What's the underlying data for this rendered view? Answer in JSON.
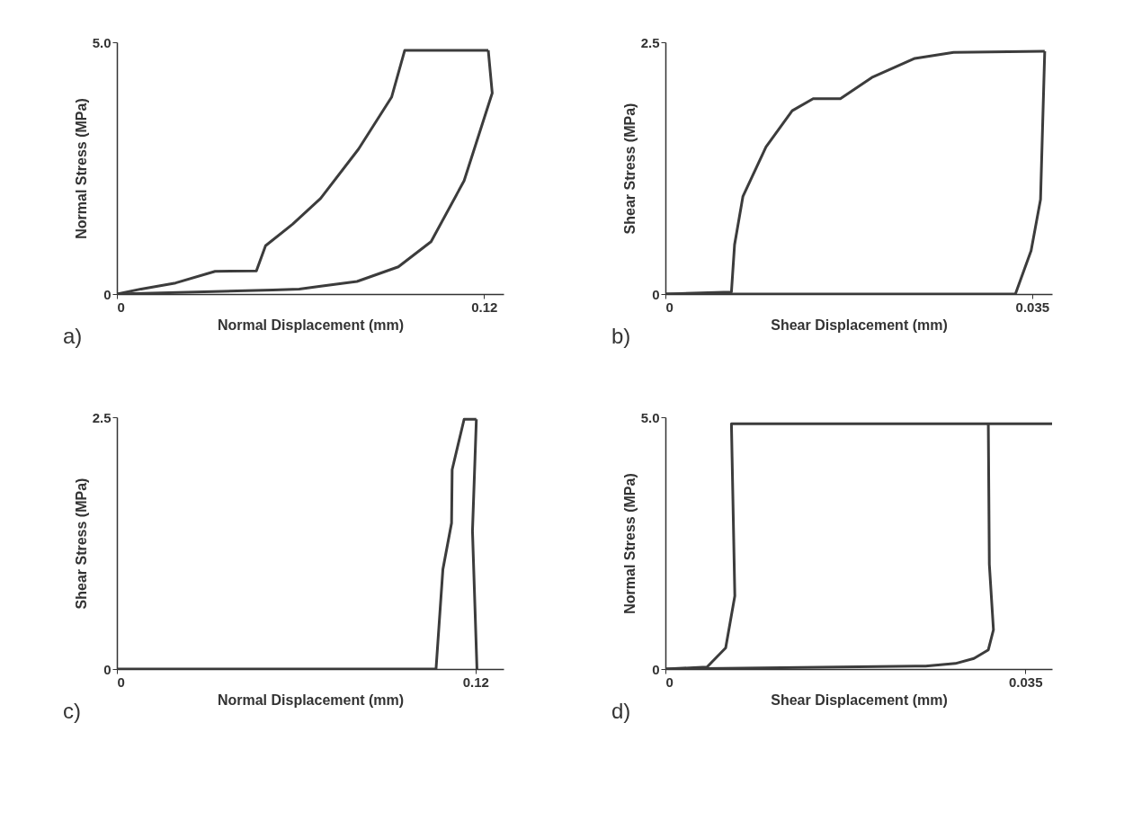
{
  "chart_data": [
    {
      "type": "line",
      "xlabel": "Normal Displacement (mm)",
      "ylabel": "Normal Stress (MPa)",
      "annotations": [
        "a)"
      ],
      "grid": false,
      "xlim": [
        0,
        0.1264
      ],
      "ylim": [
        0,
        5.0
      ],
      "xticks": [
        0,
        0.12
      ],
      "yticks": [
        0,
        {
          "value": 5,
          "label": "5.0"
        }
      ],
      "series": [
        {
          "color": "#3c3c3c",
          "x": [
            0,
            0.0079,
            0.0192,
            0.0321,
            0.0456,
            0.0486,
            0.0575,
            0.0666,
            0.079,
            0.0898,
            0.0941,
            0.1214
          ],
          "values": [
            0,
            0.1,
            0.22,
            0.45,
            0.46,
            0.96,
            1.39,
            1.9,
            2.88,
            3.91,
            4.84,
            4.84
          ]
        },
        {
          "color": "#3c3c3c",
          "x": [
            0.1214,
            0.1227,
            0.1135,
            0.1027,
            0.092,
            0.0785,
            0.0661,
            0.0596,
            0.051,
            0
          ],
          "values": [
            4.84,
            3.99,
            2.25,
            1.04,
            0.54,
            0.25,
            0.15,
            0.1,
            0.08,
            0
          ]
        }
      ]
    },
    {
      "type": "line",
      "xlabel": "Shear Displacement (mm)",
      "ylabel": "Shear Stress (MPa)",
      "annotations": [
        "b)"
      ],
      "grid": false,
      "xlim": [
        0,
        0.0369
      ],
      "ylim": [
        0,
        2.5
      ],
      "xticks": [
        0,
        0.035
      ],
      "yticks": [
        0,
        2.5
      ],
      "series": [
        {
          "color": "#3c3c3c",
          "x": [
            0,
            0.0063,
            0.0066,
            0.0074,
            0.0096,
            0.0121,
            0.0141,
            0.0167,
            0.0197,
            0.0238,
            0.0275,
            0.0362
          ],
          "values": [
            0,
            0.02,
            0.49,
            0.97,
            1.46,
            1.82,
            1.94,
            1.94,
            2.15,
            2.34,
            2.4,
            2.41
          ]
        },
        {
          "color": "#3c3c3c",
          "x": [
            0.0362,
            0.0358,
            0.0349,
            0.0334,
            0
          ],
          "values": [
            2.41,
            0.94,
            0.43,
            0,
            0
          ]
        }
      ]
    },
    {
      "type": "line",
      "xlabel": "Normal Displacement (mm)",
      "ylabel": "Shear Stress (MPa)",
      "annotations": [
        "c)"
      ],
      "grid": false,
      "xlim": [
        0,
        0.1294
      ],
      "ylim": [
        0,
        2.5
      ],
      "xticks": [
        0,
        0.12
      ],
      "yticks": [
        0,
        2.5
      ],
      "series": [
        {
          "color": "#3c3c3c",
          "x": [
            0,
            0.1068,
            0.1091,
            0.112,
            0.1122,
            0.1162,
            0.1203
          ],
          "values": [
            0,
            0,
            0.99,
            1.45,
            1.98,
            2.48,
            2.48
          ]
        },
        {
          "color": "#3c3c3c",
          "x": [
            0.1203,
            0.119,
            0.1205
          ],
          "values": [
            2.48,
            1.37,
            0
          ]
        }
      ]
    },
    {
      "type": "line",
      "xlabel": "Shear Displacement (mm)",
      "ylabel": "Normal Stress (MPa)",
      "annotations": [
        "d)"
      ],
      "grid": false,
      "xlim": [
        0,
        0.0376
      ],
      "ylim": [
        0,
        5.0
      ],
      "xticks": [
        0,
        0.035
      ],
      "yticks": [
        0,
        {
          "value": 5,
          "label": "5.0"
        }
      ],
      "series": [
        {
          "color": "#3c3c3c",
          "x": [
            0,
            0.00405,
            0.00586,
            0.00675,
            0.00642,
            0.0376
          ],
          "values": [
            0,
            0.04,
            0.42,
            1.45,
            4.87,
            4.87
          ]
        },
        {
          "color": "#3c3c3c",
          "x": [
            0.0314,
            0.0315,
            0.0319,
            0.0314,
            0.03,
            0.0282,
            0.0253,
            0
          ],
          "values": [
            4.87,
            2.08,
            0.78,
            0.38,
            0.21,
            0.11,
            0.06,
            0
          ]
        }
      ]
    }
  ]
}
